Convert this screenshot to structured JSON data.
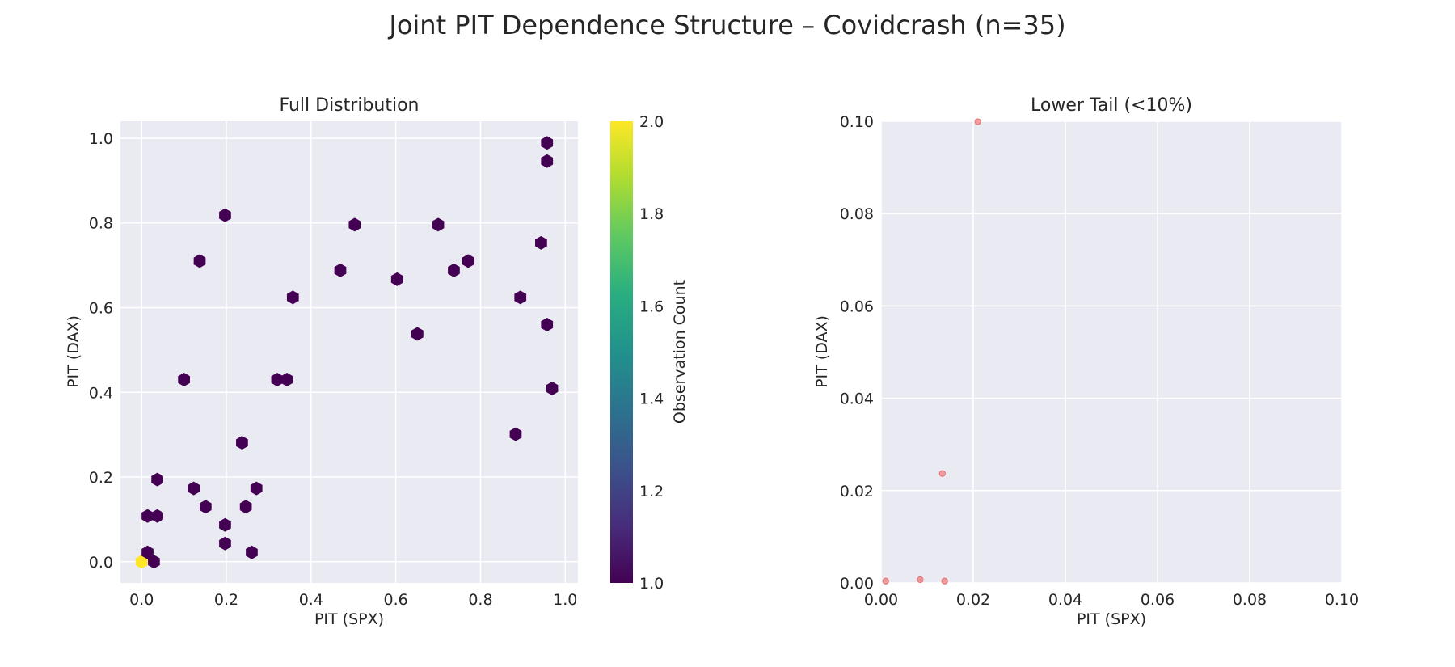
{
  "figure": {
    "title": "Joint PIT Dependence Structure – Covidcrash (n=35)"
  },
  "colors": {
    "panel_bg": "#eaeaf2",
    "grid": "#ffffff",
    "hex_count_1": "#440154",
    "hex_count_2": "#fde725",
    "tail_points": "#f08080",
    "colormap": [
      "#440154",
      "#472d7b",
      "#3b528b",
      "#2c728e",
      "#21918c",
      "#28ae80",
      "#5ec962",
      "#addc30",
      "#fde725"
    ]
  },
  "chart_data": [
    {
      "type": "hexbin",
      "title": "Full Distribution",
      "xlabel": "PIT (SPX)",
      "ylabel": "PIT (DAX)",
      "xlim": [
        -0.05,
        1.03
      ],
      "ylim": [
        -0.05,
        1.04
      ],
      "xticks": [
        0.0,
        0.2,
        0.4,
        0.6,
        0.8,
        1.0
      ],
      "yticks": [
        0.0,
        0.2,
        0.4,
        0.6,
        0.8,
        1.0
      ],
      "tick_labels": [
        "0.0",
        "0.2",
        "0.4",
        "0.6",
        "0.8",
        "1.0"
      ],
      "grid": true,
      "colorbar": {
        "label": "Observation Count",
        "min": 1.0,
        "max": 2.0,
        "ticks": [
          "1.0",
          "1.2",
          "1.4",
          "1.6",
          "1.8",
          "2.0"
        ]
      },
      "cells": [
        {
          "x": 0.0,
          "y": 0.0,
          "count": 2
        },
        {
          "x": 0.029,
          "y": 0.0,
          "count": 1
        },
        {
          "x": 0.014,
          "y": 0.022,
          "count": 1
        },
        {
          "x": 0.014,
          "y": 0.108,
          "count": 1
        },
        {
          "x": 0.037,
          "y": 0.108,
          "count": 1
        },
        {
          "x": 0.037,
          "y": 0.194,
          "count": 1
        },
        {
          "x": 0.123,
          "y": 0.173,
          "count": 1
        },
        {
          "x": 0.151,
          "y": 0.13,
          "count": 1
        },
        {
          "x": 0.197,
          "y": 0.087,
          "count": 1
        },
        {
          "x": 0.197,
          "y": 0.043,
          "count": 1
        },
        {
          "x": 0.246,
          "y": 0.13,
          "count": 1
        },
        {
          "x": 0.26,
          "y": 0.022,
          "count": 1
        },
        {
          "x": 0.271,
          "y": 0.173,
          "count": 1
        },
        {
          "x": 0.237,
          "y": 0.281,
          "count": 1
        },
        {
          "x": 0.1,
          "y": 0.43,
          "count": 1
        },
        {
          "x": 0.137,
          "y": 0.71,
          "count": 1
        },
        {
          "x": 0.197,
          "y": 0.818,
          "count": 1
        },
        {
          "x": 0.32,
          "y": 0.43,
          "count": 1
        },
        {
          "x": 0.343,
          "y": 0.43,
          "count": 1
        },
        {
          "x": 0.357,
          "y": 0.624,
          "count": 1
        },
        {
          "x": 0.503,
          "y": 0.796,
          "count": 1
        },
        {
          "x": 0.469,
          "y": 0.688,
          "count": 1
        },
        {
          "x": 0.603,
          "y": 0.667,
          "count": 1
        },
        {
          "x": 0.651,
          "y": 0.538,
          "count": 1
        },
        {
          "x": 0.7,
          "y": 0.796,
          "count": 1
        },
        {
          "x": 0.737,
          "y": 0.688,
          "count": 1
        },
        {
          "x": 0.771,
          "y": 0.71,
          "count": 1
        },
        {
          "x": 0.883,
          "y": 0.301,
          "count": 1
        },
        {
          "x": 0.894,
          "y": 0.624,
          "count": 1
        },
        {
          "x": 0.943,
          "y": 0.753,
          "count": 1
        },
        {
          "x": 0.957,
          "y": 0.56,
          "count": 1
        },
        {
          "x": 0.957,
          "y": 0.946,
          "count": 1
        },
        {
          "x": 0.957,
          "y": 0.989,
          "count": 1
        },
        {
          "x": 0.969,
          "y": 0.409,
          "count": 1
        }
      ]
    },
    {
      "type": "scatter",
      "title": "Lower Tail (<10%)",
      "xlabel": "PIT (SPX)",
      "ylabel": "PIT (DAX)",
      "xlim": [
        0.0,
        0.1
      ],
      "ylim": [
        0.0,
        0.1
      ],
      "xticks": [
        0.0,
        0.02,
        0.04,
        0.06,
        0.08,
        0.1
      ],
      "yticks": [
        0.0,
        0.02,
        0.04,
        0.06,
        0.08,
        0.1
      ],
      "tick_labels": [
        "0.00",
        "0.02",
        "0.04",
        "0.06",
        "0.08",
        "0.10"
      ],
      "grid": true,
      "points": [
        {
          "x": 0.001,
          "y": 0.0004
        },
        {
          "x": 0.0085,
          "y": 0.0007
        },
        {
          "x": 0.0138,
          "y": 0.0004
        },
        {
          "x": 0.0133,
          "y": 0.0237
        },
        {
          "x": 0.021,
          "y": 0.0999
        }
      ]
    }
  ]
}
